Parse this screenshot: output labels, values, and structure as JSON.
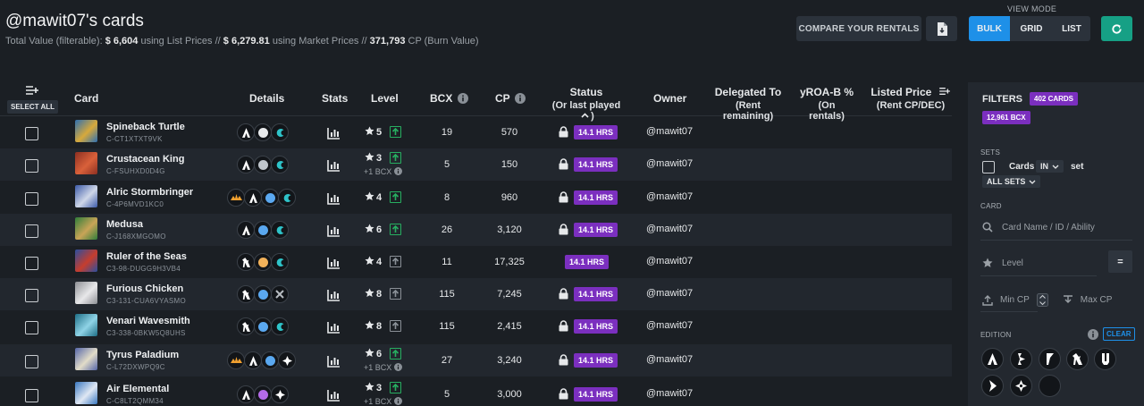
{
  "header": {
    "title": "@mawit07's cards",
    "total_value_label": "Total Value (filterable):",
    "list_price": "$ 6,604",
    "using_list_prices": "using List Prices //",
    "market_price": "$ 6,279.81",
    "using_market_prices": "using Market Prices //",
    "cp_value": "371,793",
    "cp_label": "CP (Burn Value)",
    "compare_button": "COMPARE YOUR RENTALS",
    "view_mode_label": "VIEW MODE",
    "view_modes": [
      "BULK",
      "GRID",
      "LIST"
    ],
    "active_view_mode": "BULK",
    "accent_color": "#1e90e8",
    "refresh_color": "#16a085"
  },
  "table": {
    "select_all": "SELECT ALL",
    "columns": {
      "card": "Card",
      "details": "Details",
      "stats": "Stats",
      "level": "Level",
      "bcx": "BCX",
      "cp": "CP",
      "status": "Status",
      "status_sub": "(Or last played",
      "status_sub_end": ")",
      "owner": "Owner",
      "delegated": "Delegated To",
      "delegated_sub": "(Rent remaining)",
      "yroa": "yROA-B %",
      "yroa_sub": "(On rentals)",
      "listed": "Listed Price",
      "listed_sub": "(Rent CP/DEC)"
    },
    "rows": [
      {
        "name": "Spineback Turtle",
        "id": "C-CT1XTXT9VK",
        "level": "5",
        "bcx_note": "",
        "bcx": "19",
        "cp": "570",
        "status": "14.1 HRS",
        "locked": true,
        "owner": "@mawit07"
      },
      {
        "name": "Crustacean King",
        "id": "C-FSUHXD0D4G",
        "level": "3",
        "bcx_note": "+1 BCX",
        "bcx": "5",
        "cp": "150",
        "status": "14.1 HRS",
        "locked": true,
        "owner": "@mawit07"
      },
      {
        "name": "Alric Stormbringer",
        "id": "C-4P6MVD1KC0",
        "level": "4",
        "bcx_note": "",
        "bcx": "8",
        "cp": "960",
        "status": "14.1 HRS",
        "locked": true,
        "owner": "@mawit07"
      },
      {
        "name": "Medusa",
        "id": "C-J168XMGOMO",
        "level": "6",
        "bcx_note": "",
        "bcx": "26",
        "cp": "3,120",
        "status": "14.1 HRS",
        "locked": true,
        "owner": "@mawit07"
      },
      {
        "name": "Ruler of the Seas",
        "id": "C3-98-DUGG9H3VB4",
        "level": "4",
        "bcx_note": "",
        "bcx": "11",
        "cp": "17,325",
        "status": "14.1 HRS",
        "locked": false,
        "owner": "@mawit07"
      },
      {
        "name": "Furious Chicken",
        "id": "C3-131-CUA6VYASMO",
        "level": "8",
        "bcx_note": "",
        "bcx": "115",
        "cp": "7,245",
        "status": "14.1 HRS",
        "locked": true,
        "owner": "@mawit07"
      },
      {
        "name": "Venari Wavesmith",
        "id": "C3-338-0BKW5Q8UHS",
        "level": "8",
        "bcx_note": "",
        "bcx": "115",
        "cp": "2,415",
        "status": "14.1 HRS",
        "locked": true,
        "owner": "@mawit07"
      },
      {
        "name": "Tyrus Paladium",
        "id": "C-L72DXWPQ9C",
        "level": "6",
        "bcx_note": "+1 BCX",
        "bcx": "27",
        "cp": "3,240",
        "status": "14.1 HRS",
        "locked": true,
        "owner": "@mawit07"
      },
      {
        "name": "Air Elemental",
        "id": "C-C8LT2QMM34",
        "level": "3",
        "bcx_note": "+1 BCX",
        "bcx": "5",
        "cp": "3,000",
        "status": "14.1 HRS",
        "locked": true,
        "owner": "@mawit07"
      }
    ]
  },
  "sidebar": {
    "filters_title": "FILTERS",
    "cards_count": "402 CARDS",
    "bcx_count": "12,961 BCX",
    "sets_label": "SETS",
    "cards_label": "Cards",
    "in_option": "IN",
    "set_label": "set",
    "all_sets": "ALL SETS",
    "card_label": "CARD",
    "card_search_placeholder": "Card Name / ID / Ability",
    "level_label": "Level",
    "level_operator": "=",
    "min_cp": "Min CP",
    "max_cp": "Max CP",
    "edition_label": "EDITION",
    "clear": "CLEAR"
  }
}
